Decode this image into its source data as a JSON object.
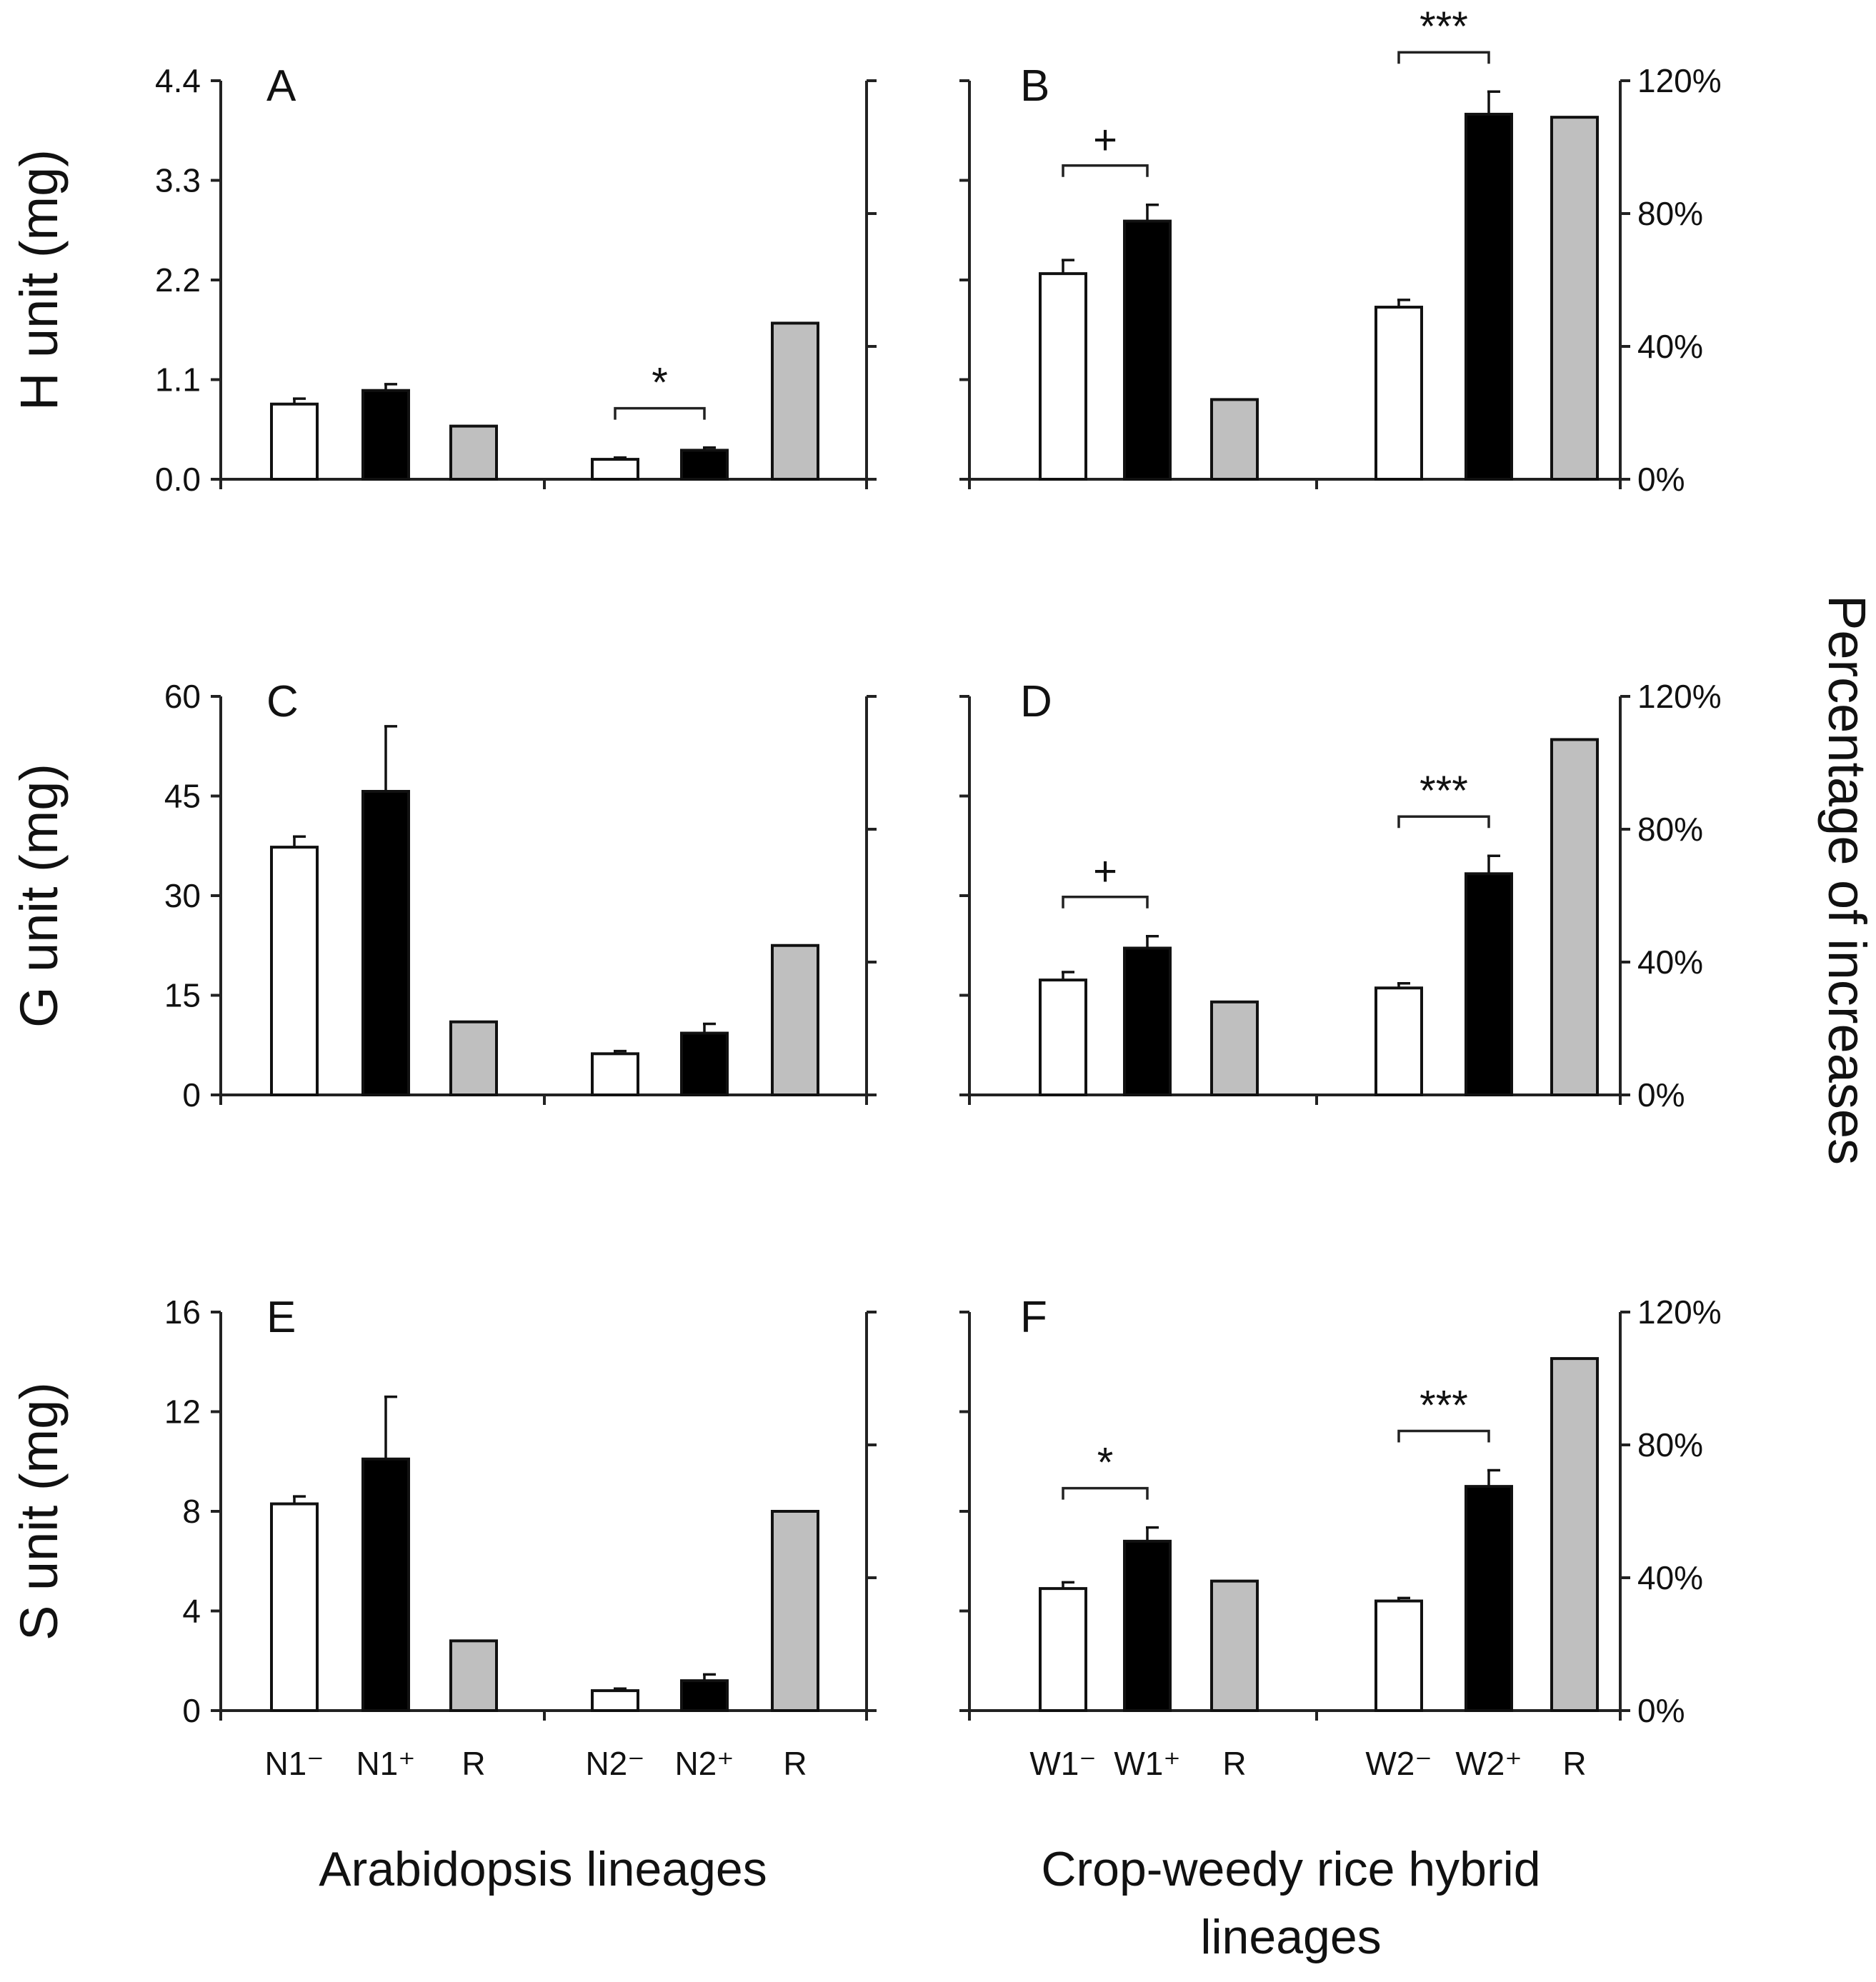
{
  "colors": {
    "minus": "#ffffff",
    "plus": "#000000",
    "R": "#bfbfbf"
  },
  "right_axis_title": "Percentage of increases",
  "right_ticks": [
    "0%",
    "40%",
    "80%",
    "120%"
  ],
  "group_labels": {
    "left": "Arabidopsis lineages",
    "right_line1": "Crop-weedy rice hybrid",
    "right_line2": "lineages"
  },
  "x_labels": {
    "left": [
      "N1⁻",
      "N1⁺",
      "R",
      "N2⁻",
      "N2⁺",
      "R"
    ],
    "right": [
      "W1⁻",
      "W1⁺",
      "R",
      "W2⁻",
      "W2⁺",
      "R"
    ]
  },
  "chart_data": [
    {
      "type": "bar",
      "panel": "A",
      "ylabel": "H unit (mg)",
      "yticks": [
        "0.0",
        "1.1",
        "2.2",
        "3.3",
        "4.4"
      ],
      "ylim": [
        0,
        4.4
      ],
      "y2lim": [
        0,
        120
      ],
      "categories": [
        "N1⁻",
        "N1⁺",
        "R",
        "N2⁻",
        "N2⁺",
        "R"
      ],
      "series": [
        {
          "name": "minus",
          "values": [
            0.83,
            null,
            null,
            0.22,
            null,
            null
          ],
          "errors": [
            0.06,
            null,
            null,
            0.02,
            null,
            null
          ]
        },
        {
          "name": "plus",
          "values": [
            null,
            0.98,
            null,
            null,
            0.32,
            null
          ],
          "errors": [
            null,
            0.07,
            null,
            null,
            0.03,
            null
          ]
        },
        {
          "name": "R (%)",
          "values": [
            null,
            null,
            16,
            null,
            null,
            47
          ],
          "errors": [
            null,
            null,
            null,
            null,
            null,
            null
          ]
        }
      ],
      "annotations": [
        {
          "text": "*",
          "between": [
            3,
            4
          ]
        }
      ]
    },
    {
      "type": "bar",
      "panel": "B",
      "ylabel": "",
      "yticks": [],
      "ylim": [
        0,
        4.4
      ],
      "y2lim": [
        0,
        120
      ],
      "categories": [
        "W1⁻",
        "W1⁺",
        "R",
        "W2⁻",
        "W2⁺",
        "R"
      ],
      "series": [
        {
          "name": "minus",
          "values": [
            2.27,
            null,
            null,
            1.9,
            null,
            null
          ],
          "errors": [
            0.15,
            null,
            null,
            0.08,
            null,
            null
          ]
        },
        {
          "name": "plus",
          "values": [
            null,
            2.85,
            null,
            null,
            4.03,
            null
          ],
          "errors": [
            null,
            0.18,
            null,
            null,
            0.25,
            null
          ]
        },
        {
          "name": "R (%)",
          "values": [
            null,
            null,
            24,
            null,
            null,
            109
          ],
          "errors": [
            null,
            null,
            null,
            null,
            null,
            null
          ]
        }
      ],
      "annotations": [
        {
          "text": "+",
          "between": [
            0,
            1
          ]
        },
        {
          "text": "***",
          "between": [
            3,
            4
          ]
        }
      ]
    },
    {
      "type": "bar",
      "panel": "C",
      "ylabel": "G unit (mg)",
      "yticks": [
        "0",
        "15",
        "30",
        "45",
        "60"
      ],
      "ylim": [
        0,
        60
      ],
      "y2lim": [
        0,
        120
      ],
      "categories": [
        "N1⁻",
        "N1⁺",
        "R",
        "N2⁻",
        "N2⁺",
        "R"
      ],
      "series": [
        {
          "name": "minus",
          "values": [
            37.3,
            null,
            null,
            6.2,
            null,
            null
          ],
          "errors": [
            1.6,
            null,
            null,
            0.4,
            null,
            null
          ]
        },
        {
          "name": "plus",
          "values": [
            null,
            45.7,
            null,
            null,
            9.3,
            null
          ],
          "errors": [
            null,
            9.8,
            null,
            null,
            1.4,
            null
          ]
        },
        {
          "name": "R (%)",
          "values": [
            null,
            null,
            22,
            null,
            null,
            45
          ],
          "errors": [
            null,
            null,
            null,
            null,
            null,
            null
          ]
        }
      ],
      "annotations": []
    },
    {
      "type": "bar",
      "panel": "D",
      "ylabel": "",
      "yticks": [],
      "ylim": [
        0,
        60
      ],
      "y2lim": [
        0,
        120
      ],
      "categories": [
        "W1⁻",
        "W1⁺",
        "R",
        "W2⁻",
        "W2⁺",
        "R"
      ],
      "series": [
        {
          "name": "minus",
          "values": [
            17.3,
            null,
            null,
            16.1,
            null,
            null
          ],
          "errors": [
            1.2,
            null,
            null,
            0.7,
            null,
            null
          ]
        },
        {
          "name": "plus",
          "values": [
            null,
            22.1,
            null,
            null,
            33.3,
            null
          ],
          "errors": [
            null,
            1.8,
            null,
            null,
            2.7,
            null
          ]
        },
        {
          "name": "R (%)",
          "values": [
            null,
            null,
            28,
            null,
            null,
            107
          ],
          "errors": [
            null,
            null,
            null,
            null,
            null,
            null
          ]
        }
      ],
      "annotations": [
        {
          "text": "+",
          "between": [
            0,
            1
          ]
        },
        {
          "text": "***",
          "between": [
            3,
            4
          ]
        }
      ]
    },
    {
      "type": "bar",
      "panel": "E",
      "ylabel": "S unit (mg)",
      "yticks": [
        "0",
        "4",
        "8",
        "12",
        "16"
      ],
      "ylim": [
        0,
        16
      ],
      "y2lim": [
        0,
        120
      ],
      "categories": [
        "N1⁻",
        "N1⁺",
        "R",
        "N2⁻",
        "N2⁺",
        "R"
      ],
      "series": [
        {
          "name": "minus",
          "values": [
            8.3,
            null,
            null,
            0.8,
            null,
            null
          ],
          "errors": [
            0.3,
            null,
            null,
            0.08,
            null,
            null
          ]
        },
        {
          "name": "plus",
          "values": [
            null,
            10.1,
            null,
            null,
            1.2,
            null
          ],
          "errors": [
            null,
            2.5,
            null,
            null,
            0.25,
            null
          ]
        },
        {
          "name": "R (%)",
          "values": [
            null,
            null,
            21,
            null,
            null,
            60
          ],
          "errors": [
            null,
            null,
            null,
            null,
            null,
            null
          ]
        }
      ],
      "annotations": []
    },
    {
      "type": "bar",
      "panel": "F",
      "ylabel": "",
      "yticks": [],
      "ylim": [
        0,
        16
      ],
      "y2lim": [
        0,
        120
      ],
      "categories": [
        "W1⁻",
        "W1⁺",
        "R",
        "W2⁻",
        "W2⁺",
        "R"
      ],
      "series": [
        {
          "name": "minus",
          "values": [
            4.9,
            null,
            null,
            4.4,
            null,
            null
          ],
          "errors": [
            0.25,
            null,
            null,
            0.12,
            null,
            null
          ]
        },
        {
          "name": "plus",
          "values": [
            null,
            6.8,
            null,
            null,
            9.0,
            null
          ],
          "errors": [
            null,
            0.55,
            null,
            null,
            0.65,
            null
          ]
        },
        {
          "name": "R (%)",
          "values": [
            null,
            null,
            39,
            null,
            null,
            106
          ],
          "errors": [
            null,
            null,
            null,
            null,
            null,
            null
          ]
        }
      ],
      "annotations": [
        {
          "text": "*",
          "between": [
            0,
            1
          ]
        },
        {
          "text": "***",
          "between": [
            3,
            4
          ]
        }
      ]
    }
  ]
}
